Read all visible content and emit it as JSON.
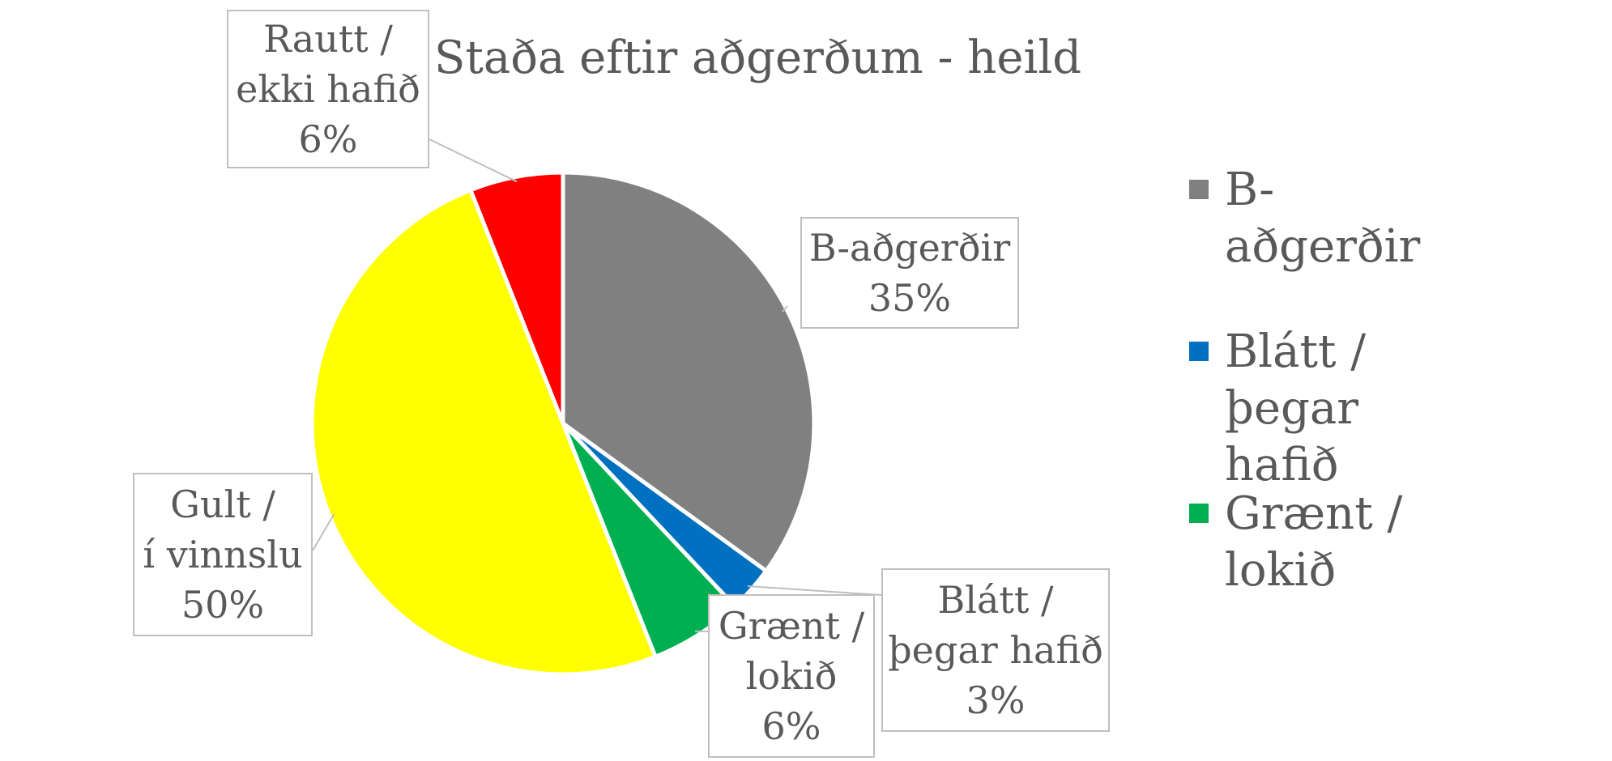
{
  "chart_data": {
    "type": "pie",
    "title": "Staða eftir aðgerðum - heild",
    "start_angle_deg": 0,
    "direction": "clockwise",
    "slices": [
      {
        "name": "B-aðgerðir",
        "value": 35,
        "color": "#808080",
        "label_lines": [
          "B-aðgerðir",
          "35%"
        ]
      },
      {
        "name": "Blátt / þegar hafið",
        "value": 3,
        "color": "#0070C0",
        "label_lines": [
          "Blátt /",
          "þegar hafið",
          "3%"
        ]
      },
      {
        "name": "Grænt / lokið",
        "value": 6,
        "color": "#00B050",
        "label_lines": [
          "Grænt /",
          "lokið",
          "6%"
        ]
      },
      {
        "name": "Gult / í vinnslu",
        "value": 50,
        "color": "#FFFF00",
        "label_lines": [
          "Gult /",
          "í vinnslu",
          "50%"
        ]
      },
      {
        "name": "Rautt / ekki hafið",
        "value": 6,
        "color": "#FF0000",
        "label_lines": [
          "Rautt /",
          "ekki hafið",
          "6%"
        ]
      }
    ],
    "legend": {
      "position": "right",
      "entries": [
        {
          "lines": [
            "B-aðgerðir"
          ],
          "color": "#808080"
        },
        {
          "lines": [
            "Blátt /",
            "þegar",
            "hafið"
          ],
          "color": "#0070C0"
        },
        {
          "lines": [
            "Grænt /",
            "lokið"
          ],
          "color": "#00B050"
        }
      ]
    }
  }
}
